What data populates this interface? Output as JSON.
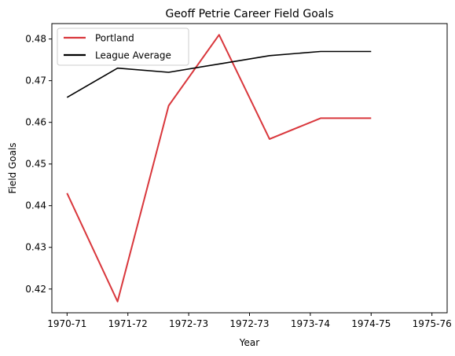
{
  "chart_data": {
    "type": "line",
    "title": "Geoff Petrie Career Field Goals",
    "xlabel": "Year",
    "ylabel": "Field Goals",
    "x_tick_labels": [
      "1970-71",
      "1971-72",
      "1972-73",
      "1972-73",
      "1973-74",
      "1974-75",
      "1975-76"
    ],
    "x_range": [
      -0.25,
      6.25
    ],
    "ylim": [
      0.4143,
      0.4837
    ],
    "y_ticks": [
      0.42,
      0.43,
      0.44,
      0.45,
      0.46,
      0.47,
      0.48
    ],
    "y_tick_labels": [
      "0.42",
      "0.43",
      "0.44",
      "0.45",
      "0.46",
      "0.47",
      "0.48"
    ],
    "grid": false,
    "legend_position": "top-left",
    "series": [
      {
        "name": "Portland",
        "color": "#d9373c",
        "x": [
          0,
          1,
          2,
          3,
          4,
          5,
          6
        ],
        "values": [
          0.443,
          0.417,
          0.464,
          0.481,
          0.456,
          0.461,
          0.461
        ],
        "x_positions": [
          0,
          0.83,
          1.67,
          2.5,
          3.33,
          4.17,
          5
        ]
      },
      {
        "name": "League Average",
        "color": "#000000",
        "x_positions": [
          0,
          0.83,
          1.67,
          2.5,
          3.33,
          4.17,
          5
        ],
        "values": [
          0.466,
          0.473,
          0.472,
          0.474,
          0.476,
          0.477,
          0.477
        ]
      }
    ]
  }
}
